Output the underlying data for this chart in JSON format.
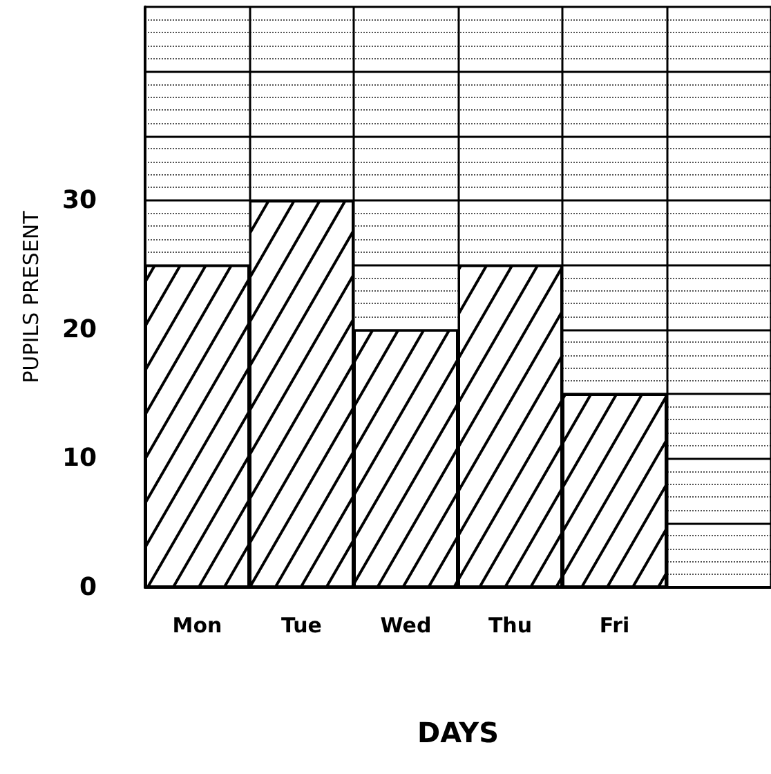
{
  "chart_data": {
    "type": "bar",
    "xlabel": "DAYS",
    "ylabel": "PUPILS PRESENT",
    "categories": [
      "Mon",
      "Tue",
      "Wed",
      "Thu",
      "Fri",
      null
    ],
    "values": [
      25,
      30,
      20,
      25,
      15,
      null
    ],
    "color": "#000000",
    "ylim": [
      0,
      45
    ],
    "yticks": [
      0,
      10,
      20,
      30
    ],
    "grid": true
  }
}
